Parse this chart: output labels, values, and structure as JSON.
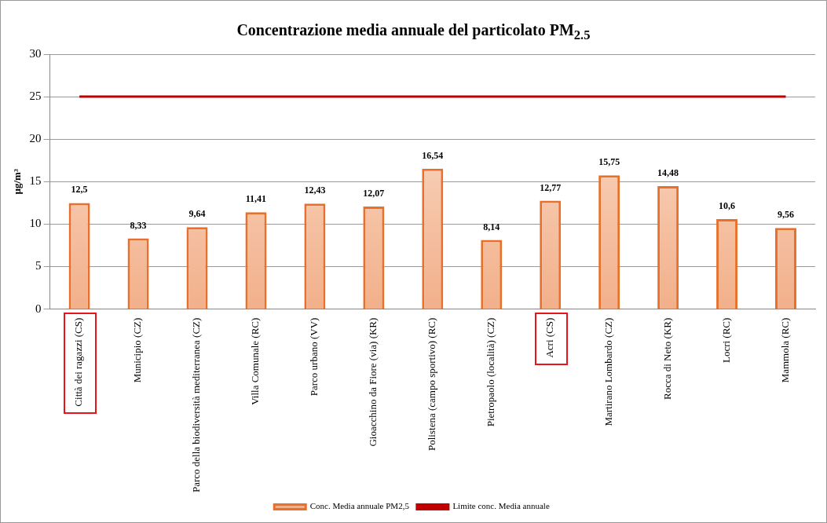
{
  "chart_data": {
    "type": "bar",
    "title": "Concentrazione media annuale del particolato PM$_{2.5}$",
    "ylabel": "µg/m³",
    "categories": [
      "Città dei ragazzi (CS)",
      "Municipio (CZ)",
      "Parco della biodiversità mediterranea (CZ)",
      "Villa Comunale (RC)",
      "Parco urbano (VV)",
      "Gioacchino da Fiore (via) (KR)",
      "Polistena (campo sportivo) (RC)",
      "Pietropaolo (località) (CZ)",
      "Acri (CS)",
      "Martirano Lombardo (CZ)",
      "Rocca di Neto (KR)",
      "Locri (RC)",
      "Mammola (RC)"
    ],
    "series": [
      {
        "name": "Conc. Media annuale PM2,5",
        "color": "#e8702a",
        "values": [
          12.5,
          8.33,
          9.64,
          11.41,
          12.43,
          12.07,
          16.54,
          8.14,
          12.77,
          15.75,
          14.48,
          10.6,
          9.56
        ],
        "value_labels": [
          "12,5",
          "8,33",
          "9,64",
          "11,41",
          "12,43",
          "12,07",
          "16,54",
          "8,14",
          "12,77",
          "15,75",
          "14,48",
          "10,6",
          "9,56"
        ]
      },
      {
        "name": "Limite conc. Media annuale",
        "type": "line",
        "color": "#c00000",
        "values": [
          25,
          25,
          25,
          25,
          25,
          25,
          25,
          25,
          25,
          25,
          25,
          25,
          25
        ]
      }
    ],
    "ylim": [
      0,
      30
    ],
    "yticks": [
      0,
      5,
      10,
      15,
      20,
      25,
      30
    ],
    "grid": "y",
    "legend": "bottom"
  }
}
